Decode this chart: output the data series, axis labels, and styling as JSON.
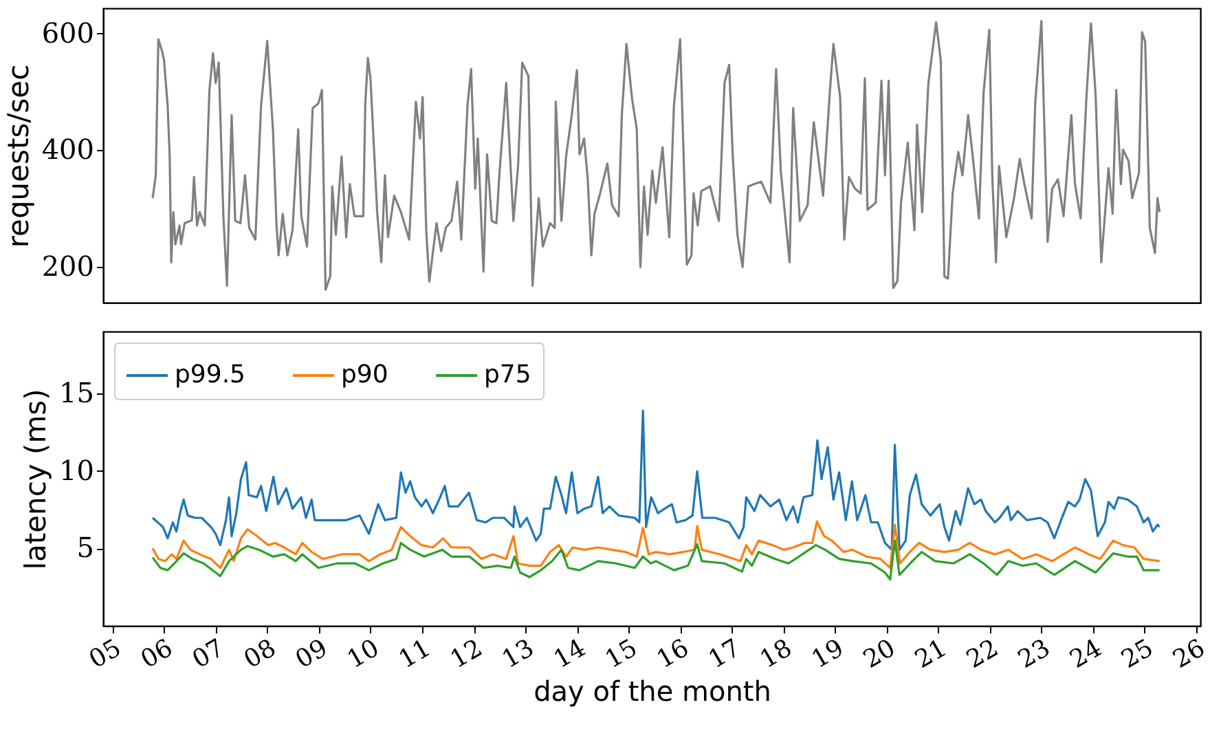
{
  "chart_data": [
    {
      "type": "line",
      "ylabel": "requests/sec",
      "xlim": [
        4.82,
        26.08
      ],
      "ylim": [
        139,
        643
      ],
      "yticks": [
        200,
        400,
        600
      ],
      "tick_labels": "y",
      "grid": false,
      "line_style": "solid",
      "series": [
        {
          "color": "#808080",
          "x": [
            5.78,
            5.84,
            5.89,
            5.96,
            6.0,
            6.07,
            6.11,
            6.14,
            6.18,
            6.22,
            6.3,
            6.33,
            6.4,
            6.54,
            6.58,
            6.64,
            6.69,
            6.79,
            6.88,
            6.95,
            7.0,
            7.06,
            7.15,
            7.22,
            7.31,
            7.38,
            7.48,
            7.57,
            7.65,
            7.77,
            7.88,
            8.0,
            8.11,
            8.18,
            8.22,
            8.3,
            8.39,
            8.49,
            8.6,
            8.66,
            8.77,
            8.88,
            8.99,
            9.06,
            9.13,
            9.22,
            9.26,
            9.33,
            9.44,
            9.53,
            9.6,
            9.69,
            9.86,
            9.9,
            9.95,
            10.0,
            10.13,
            10.21,
            10.28,
            10.34,
            10.46,
            10.59,
            10.75,
            10.88,
            10.96,
            11.01,
            11.08,
            11.14,
            11.28,
            11.37,
            11.46,
            11.57,
            11.68,
            11.76,
            11.88,
            11.95,
            12.03,
            12.08,
            12.19,
            12.26,
            12.35,
            12.44,
            12.5,
            12.63,
            12.77,
            12.86,
            12.94,
            13.06,
            13.14,
            13.26,
            13.34,
            13.48,
            13.57,
            13.59,
            13.7,
            13.79,
            13.9,
            14.0,
            14.05,
            14.14,
            14.21,
            14.28,
            14.34,
            14.45,
            14.59,
            14.68,
            14.81,
            14.87,
            14.96,
            15.07,
            15.16,
            15.23,
            15.3,
            15.37,
            15.46,
            15.53,
            15.66,
            15.79,
            15.88,
            16.0,
            16.13,
            16.22,
            16.26,
            16.34,
            16.41,
            16.58,
            16.75,
            16.86,
            16.95,
            17.02,
            17.11,
            17.21,
            17.32,
            17.44,
            17.57,
            17.75,
            17.86,
            17.95,
            18.12,
            18.19,
            18.32,
            18.47,
            18.59,
            18.77,
            18.9,
            18.97,
            19.1,
            19.18,
            19.27,
            19.39,
            19.5,
            19.58,
            19.63,
            19.79,
            19.9,
            19.97,
            20.04,
            20.13,
            20.21,
            20.28,
            20.41,
            20.54,
            20.59,
            20.69,
            20.81,
            20.96,
            21.05,
            21.12,
            21.19,
            21.28,
            21.39,
            21.47,
            21.58,
            21.67,
            21.79,
            21.88,
            21.99,
            22.05,
            22.12,
            22.18,
            22.32,
            22.47,
            22.58,
            22.67,
            22.81,
            22.88,
            23.0,
            23.12,
            23.21,
            23.32,
            23.43,
            23.58,
            23.65,
            23.76,
            23.87,
            23.96,
            24.05,
            24.16,
            24.3,
            24.38,
            24.45,
            24.54,
            24.58,
            24.69,
            24.76,
            24.89,
            24.95,
            25.01,
            25.1,
            25.2,
            25.25,
            25.29
          ],
          "values": [
            318,
            357,
            590,
            570,
            554,
            476,
            389,
            208,
            294,
            239,
            271,
            239,
            275,
            280,
            354,
            271,
            294,
            271,
            503,
            566,
            515,
            550,
            287,
            168,
            460,
            279,
            275,
            357,
            267,
            247,
            476,
            587,
            436,
            271,
            220,
            291,
            220,
            263,
            436,
            287,
            235,
            472,
            480,
            503,
            161,
            184,
            338,
            255,
            389,
            251,
            342,
            287,
            287,
            480,
            558,
            523,
            294,
            208,
            357,
            251,
            322,
            294,
            247,
            483,
            420,
            491,
            263,
            175,
            275,
            227,
            267,
            279,
            346,
            247,
            476,
            539,
            334,
            420,
            192,
            393,
            279,
            275,
            361,
            515,
            279,
            373,
            550,
            527,
            168,
            318,
            235,
            275,
            267,
            483,
            279,
            389,
            460,
            537,
            393,
            420,
            350,
            220,
            291,
            326,
            377,
            306,
            287,
            460,
            582,
            487,
            436,
            200,
            338,
            255,
            365,
            310,
            405,
            251,
            476,
            590,
            204,
            220,
            326,
            271,
            330,
            338,
            279,
            515,
            546,
            389,
            255,
            200,
            338,
            342,
            346,
            310,
            539,
            365,
            208,
            472,
            279,
            306,
            448,
            322,
            499,
            582,
            491,
            247,
            354,
            334,
            326,
            523,
            298,
            310,
            519,
            357,
            519,
            164,
            176,
            310,
            413,
            263,
            444,
            294,
            515,
            619,
            554,
            184,
            180,
            326,
            397,
            357,
            460,
            389,
            283,
            499,
            606,
            350,
            208,
            373,
            251,
            318,
            385,
            342,
            283,
            480,
            621,
            243,
            334,
            350,
            287,
            460,
            342,
            283,
            487,
            617,
            495,
            208,
            369,
            291,
            503,
            342,
            401,
            381,
            318,
            361,
            602,
            586,
            267,
            224,
            318,
            294
          ]
        }
      ]
    },
    {
      "type": "line",
      "xlabel": "day of the month",
      "ylabel": "latency (ms)",
      "xlim": [
        4.82,
        26.08
      ],
      "ylim": [
        0,
        19
      ],
      "yticks": [
        5,
        10,
        15
      ],
      "xticks": [
        {
          "value": 5,
          "label": "05"
        },
        {
          "value": 6,
          "label": "06"
        },
        {
          "value": 7,
          "label": "07"
        },
        {
          "value": 8,
          "label": "08"
        },
        {
          "value": 9,
          "label": "09"
        },
        {
          "value": 10,
          "label": "10"
        },
        {
          "value": 11,
          "label": "11"
        },
        {
          "value": 12,
          "label": "12"
        },
        {
          "value": 13,
          "label": "13"
        },
        {
          "value": 14,
          "label": "14"
        },
        {
          "value": 15,
          "label": "15"
        },
        {
          "value": 16,
          "label": "16"
        },
        {
          "value": 17,
          "label": "17"
        },
        {
          "value": 18,
          "label": "18"
        },
        {
          "value": 19,
          "label": "19"
        },
        {
          "value": 20,
          "label": "20"
        },
        {
          "value": 21,
          "label": "21"
        },
        {
          "value": 22,
          "label": "22"
        },
        {
          "value": 23,
          "label": "23"
        },
        {
          "value": 24,
          "label": "24"
        },
        {
          "value": 25,
          "label": "25"
        },
        {
          "value": 26,
          "label": "26"
        }
      ],
      "grid": false,
      "legend": "top left",
      "line_style": "solid",
      "series": [
        {
          "name": "p99.5",
          "color": "#1f77b4",
          "x": [
            5.78,
            5.98,
            6.07,
            6.17,
            6.24,
            6.31,
            6.38,
            6.46,
            6.6,
            6.73,
            6.91,
            7.0,
            7.09,
            7.2,
            7.26,
            7.31,
            7.4,
            7.49,
            7.59,
            7.64,
            7.8,
            7.88,
            7.98,
            8.12,
            8.21,
            8.37,
            8.49,
            8.66,
            8.75,
            8.86,
            8.92,
            9.17,
            9.53,
            9.79,
            9.97,
            10.15,
            10.28,
            10.5,
            10.59,
            10.68,
            10.77,
            10.86,
            10.99,
            11.08,
            11.21,
            11.35,
            11.44,
            11.52,
            11.7,
            11.91,
            12.06,
            12.23,
            12.37,
            12.59,
            12.77,
            12.79,
            12.9,
            13.03,
            13.21,
            13.3,
            13.36,
            13.48,
            13.59,
            13.7,
            13.79,
            13.9,
            14.01,
            14.14,
            14.28,
            14.41,
            14.5,
            14.63,
            14.81,
            15.12,
            15.21,
            15.28,
            15.34,
            15.44,
            15.57,
            15.7,
            15.84,
            15.93,
            16.1,
            16.24,
            16.33,
            16.43,
            16.68,
            16.95,
            17.14,
            17.23,
            17.28,
            17.44,
            17.55,
            17.75,
            17.92,
            18.06,
            18.19,
            18.28,
            18.39,
            18.56,
            18.66,
            18.74,
            18.86,
            18.97,
            19.08,
            19.21,
            19.33,
            19.43,
            19.59,
            19.7,
            19.83,
            19.97,
            20.1,
            20.16,
            20.25,
            20.37,
            20.45,
            20.57,
            20.68,
            20.85,
            21.03,
            21.12,
            21.21,
            21.34,
            21.43,
            21.58,
            21.7,
            21.83,
            21.92,
            22.1,
            22.19,
            22.35,
            22.41,
            22.54,
            22.72,
            22.98,
            23.12,
            23.25,
            23.38,
            23.52,
            23.65,
            23.74,
            23.85,
            23.96,
            24.09,
            24.23,
            24.3,
            24.41,
            24.49,
            24.67,
            24.85,
            24.98,
            25.07,
            25.16,
            25.25,
            25.29
          ],
          "values": [
            6.97,
            6.38,
            5.65,
            6.68,
            6.09,
            7.27,
            8.15,
            7.12,
            6.97,
            6.97,
            6.38,
            5.94,
            5.21,
            6.82,
            8.3,
            5.79,
            7.27,
            9.47,
            10.56,
            8.44,
            8.3,
            9.03,
            7.41,
            9.62,
            7.85,
            8.88,
            7.56,
            8.3,
            6.97,
            8.15,
            6.82,
            6.82,
            6.82,
            7.12,
            5.94,
            7.85,
            6.82,
            6.97,
            9.91,
            8.59,
            9.33,
            8.3,
            7.71,
            8.15,
            7.27,
            8.3,
            9.03,
            7.71,
            7.71,
            8.59,
            6.82,
            6.68,
            6.97,
            6.97,
            6.38,
            7.71,
            6.38,
            6.97,
            5.5,
            5.94,
            7.56,
            7.56,
            9.62,
            8.44,
            7.27,
            9.91,
            7.27,
            7.56,
            7.71,
            9.62,
            7.27,
            7.71,
            7.12,
            6.97,
            6.68,
            13.89,
            6.38,
            8.3,
            7.27,
            7.56,
            7.85,
            6.68,
            6.82,
            7.12,
            9.97,
            6.97,
            6.97,
            6.68,
            5.65,
            6.38,
            8.3,
            7.41,
            8.44,
            7.71,
            8.15,
            6.82,
            7.71,
            6.68,
            8.3,
            8.44,
            11.97,
            9.47,
            11.53,
            8.15,
            9.91,
            6.82,
            9.33,
            6.82,
            8.44,
            6.68,
            6.68,
            5.35,
            4.91,
            11.68,
            4.91,
            5.5,
            8.44,
            9.77,
            7.85,
            7.12,
            7.85,
            6.38,
            5.5,
            7.41,
            6.53,
            8.88,
            7.85,
            8.15,
            7.41,
            6.68,
            6.97,
            7.71,
            6.82,
            7.41,
            6.82,
            6.97,
            6.68,
            5.65,
            6.82,
            8.0,
            7.71,
            8.15,
            9.47,
            8.74,
            5.79,
            6.68,
            8.0,
            7.56,
            8.3,
            8.15,
            7.71,
            6.68,
            6.97,
            6.09,
            6.53,
            6.38
          ]
        },
        {
          "name": "p90",
          "color": "#ff7f0e",
          "x": [
            5.78,
            5.89,
            6.02,
            6.15,
            6.24,
            6.38,
            6.51,
            6.69,
            6.91,
            7.09,
            7.26,
            7.35,
            7.49,
            7.62,
            7.8,
            8.02,
            8.15,
            8.33,
            8.55,
            8.68,
            8.86,
            9.08,
            9.44,
            9.79,
            9.97,
            10.19,
            10.41,
            10.59,
            10.77,
            10.99,
            11.21,
            11.41,
            11.57,
            11.92,
            12.15,
            12.37,
            12.63,
            12.77,
            12.86,
            13.08,
            13.3,
            13.48,
            13.65,
            13.79,
            13.92,
            14.14,
            14.41,
            14.68,
            14.94,
            15.16,
            15.28,
            15.39,
            15.53,
            15.79,
            16.06,
            16.28,
            16.33,
            16.42,
            16.77,
            17.17,
            17.28,
            17.39,
            17.52,
            17.79,
            18.01,
            18.19,
            18.41,
            18.56,
            18.65,
            18.79,
            18.94,
            19.17,
            19.34,
            19.61,
            19.88,
            20.07,
            20.16,
            20.26,
            20.45,
            20.63,
            20.85,
            21.12,
            21.39,
            21.61,
            21.83,
            22.1,
            22.36,
            22.63,
            22.9,
            23.21,
            23.43,
            23.65,
            23.92,
            24.14,
            24.39,
            24.58,
            24.8,
            24.98,
            25.29
          ],
          "values": [
            5.0,
            4.32,
            4.18,
            4.62,
            4.32,
            5.5,
            4.91,
            4.62,
            4.32,
            3.74,
            4.91,
            4.18,
            5.65,
            6.24,
            5.79,
            5.21,
            5.35,
            5.06,
            4.62,
            5.35,
            4.77,
            4.32,
            4.62,
            4.62,
            4.18,
            4.62,
            4.91,
            6.38,
            5.79,
            5.21,
            5.06,
            5.65,
            5.06,
            5.06,
            4.32,
            4.62,
            4.32,
            5.79,
            4.03,
            3.88,
            3.88,
            4.77,
            5.21,
            4.47,
            5.06,
            4.91,
            5.06,
            4.91,
            4.77,
            4.47,
            6.32,
            4.62,
            4.77,
            4.62,
            4.77,
            4.91,
            6.44,
            4.91,
            4.62,
            4.18,
            5.21,
            4.62,
            5.5,
            5.21,
            4.91,
            5.06,
            5.35,
            5.35,
            6.74,
            5.79,
            5.5,
            4.77,
            4.91,
            4.47,
            4.32,
            3.74,
            6.53,
            4.03,
            4.77,
            5.35,
            4.91,
            4.77,
            4.91,
            5.35,
            4.91,
            4.62,
            4.91,
            4.32,
            4.62,
            4.18,
            4.62,
            5.06,
            4.62,
            4.32,
            5.5,
            5.21,
            5.06,
            4.32,
            4.18
          ]
        },
        {
          "name": "p75",
          "color": "#2ca02c",
          "x": [
            5.78,
            5.93,
            6.07,
            6.2,
            6.38,
            6.55,
            6.77,
            7.09,
            7.26,
            7.49,
            7.62,
            7.84,
            8.11,
            8.33,
            8.55,
            8.68,
            8.99,
            9.35,
            9.7,
            9.97,
            10.24,
            10.5,
            10.59,
            10.77,
            11.04,
            11.39,
            11.57,
            11.92,
            12.19,
            12.46,
            12.72,
            12.79,
            12.9,
            13.08,
            13.3,
            13.52,
            13.7,
            13.83,
            14.05,
            14.41,
            14.76,
            15.12,
            15.28,
            15.43,
            15.53,
            15.88,
            16.15,
            16.33,
            16.42,
            16.86,
            17.2,
            17.28,
            17.39,
            17.52,
            17.84,
            18.1,
            18.37,
            18.63,
            18.81,
            19.08,
            19.34,
            19.7,
            19.97,
            20.07,
            20.16,
            20.25,
            20.5,
            20.68,
            20.94,
            21.3,
            21.61,
            21.88,
            22.14,
            22.36,
            22.63,
            22.9,
            23.25,
            23.65,
            24.05,
            24.39,
            24.67,
            24.85,
            24.98,
            25.29
          ],
          "values": [
            4.41,
            3.74,
            3.59,
            4.03,
            4.68,
            4.32,
            4.03,
            3.21,
            4.18,
            4.91,
            5.15,
            4.91,
            4.47,
            4.62,
            4.18,
            4.62,
            3.74,
            4.03,
            4.03,
            3.59,
            4.03,
            4.32,
            5.35,
            4.91,
            4.47,
            4.91,
            4.47,
            4.47,
            3.74,
            3.88,
            3.74,
            4.47,
            3.44,
            3.15,
            3.59,
            4.18,
            4.91,
            3.74,
            3.59,
            4.18,
            4.03,
            3.74,
            4.47,
            4.03,
            4.18,
            3.59,
            3.88,
            5.27,
            4.18,
            4.03,
            3.5,
            4.32,
            3.88,
            4.77,
            4.32,
            4.03,
            4.62,
            5.21,
            4.91,
            4.32,
            4.18,
            4.03,
            3.44,
            3.0,
            5.5,
            3.29,
            4.18,
            4.77,
            4.18,
            4.03,
            4.62,
            4.03,
            3.29,
            4.18,
            3.88,
            4.03,
            3.29,
            4.18,
            3.44,
            4.68,
            4.47,
            4.47,
            3.59,
            3.59
          ]
        }
      ]
    }
  ]
}
